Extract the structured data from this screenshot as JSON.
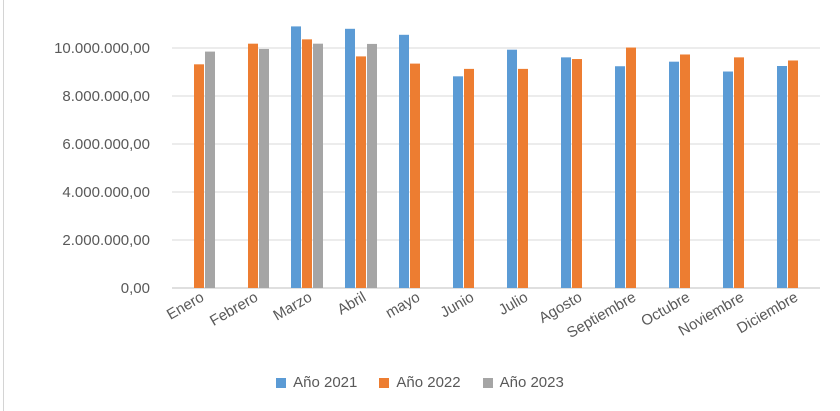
{
  "chart_data": {
    "type": "bar",
    "categories": [
      "Enero",
      "Febrero",
      "Marzo",
      "Abril",
      "mayo",
      "Junio",
      "Julio",
      "Agosto",
      "Septiembre",
      "Octubre",
      "Noviembre",
      "Diciembre"
    ],
    "series": [
      {
        "name": "Año 2021",
        "color": "#5b9bd5",
        "values": [
          null,
          null,
          10900000,
          10800000,
          10550000,
          8820000,
          9930000,
          9610000,
          9240000,
          9430000,
          9020000,
          9250000
        ]
      },
      {
        "name": "Año 2022",
        "color": "#ed7d31",
        "values": [
          9320000,
          10180000,
          10360000,
          9650000,
          9350000,
          9130000,
          9130000,
          9540000,
          10020000,
          9730000,
          9610000,
          9480000
        ]
      },
      {
        "name": "Año 2023",
        "color": "#a5a5a5",
        "values": [
          9850000,
          9960000,
          10180000,
          10170000,
          null,
          null,
          null,
          null,
          null,
          null,
          null,
          null
        ]
      }
    ],
    "yticks": [
      "0,00",
      "2.000.000,00",
      "4.000.000,00",
      "6.000.000,00",
      "8.000.000,00",
      "10.000.000,00"
    ],
    "ylim": [
      0,
      12000000
    ],
    "title": "",
    "xlabel": "",
    "ylabel": "",
    "grid": true,
    "legend_position": "bottom"
  }
}
